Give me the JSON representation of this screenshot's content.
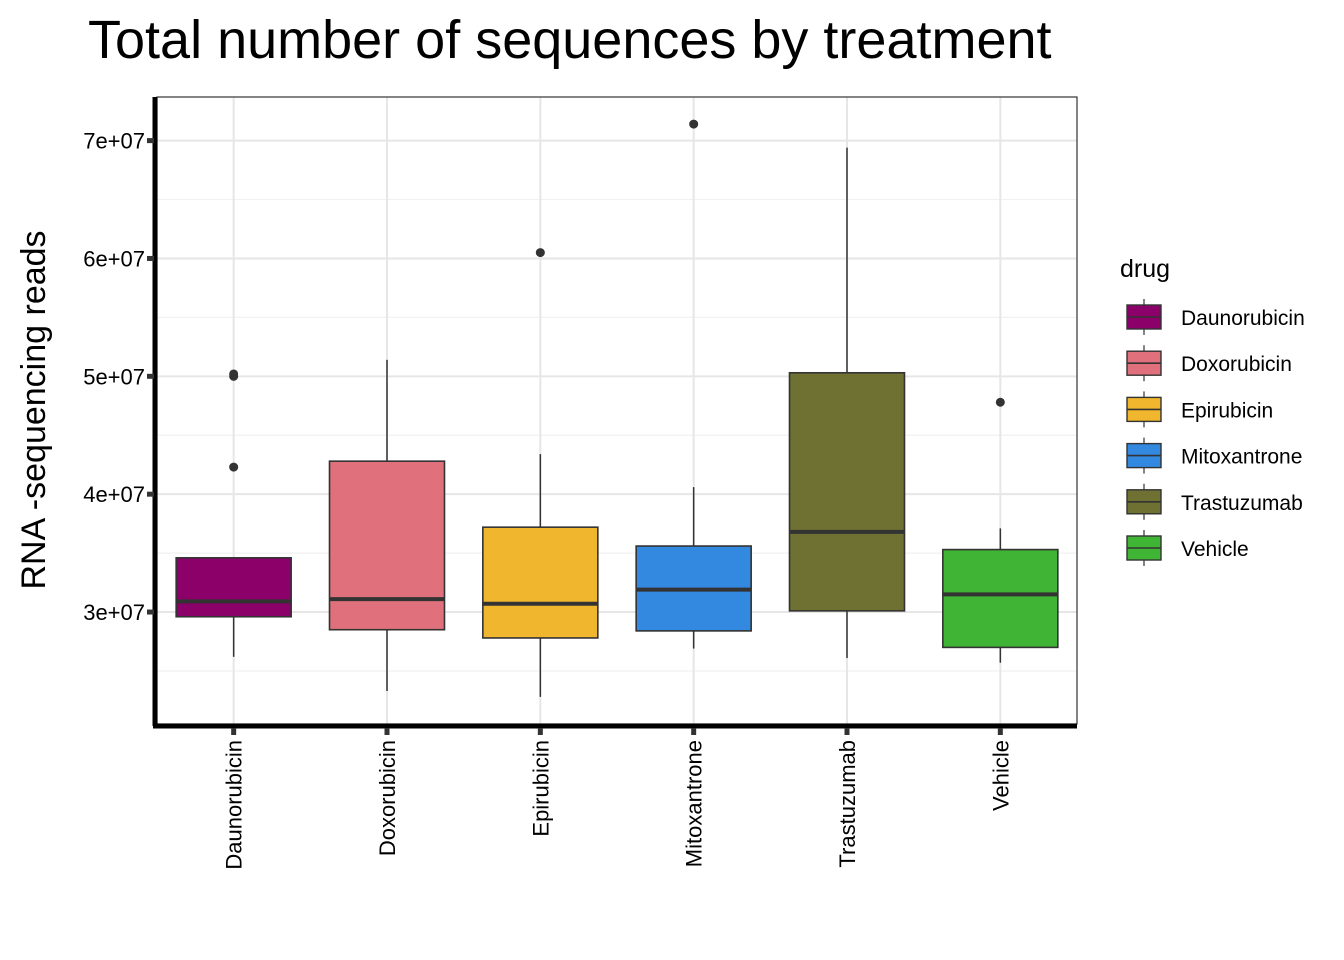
{
  "chart_data": {
    "type": "box",
    "title": "Total number of sequences by treatment",
    "xlabel": "",
    "ylabel": "RNA -sequencing reads",
    "categories": [
      "Daunorubicin",
      "Doxorubicin",
      "Epirubicin",
      "Mitoxantrone",
      "Trastuzumab",
      "Vehicle"
    ],
    "y_ticks": [
      30000000,
      40000000,
      50000000,
      60000000,
      70000000
    ],
    "y_tick_labels": [
      "3e+07",
      "4e+07",
      "5e+07",
      "6e+07",
      "7e+07"
    ],
    "ylim": [
      20500000,
      73700000
    ],
    "grid": true,
    "legend": {
      "title": "drug",
      "placement": "right",
      "entries": [
        "Daunorubicin",
        "Doxorubicin",
        "Epirubicin",
        "Mitoxantrone",
        "Trastuzumab",
        "Vehicle"
      ]
    },
    "colors": {
      "Daunorubicin": "#8B0069",
      "Doxorubicin": "#E0717C",
      "Epirubicin": "#F0B62D",
      "Mitoxantrone": "#3388E0",
      "Trastuzumab": "#6F7133",
      "Vehicle": "#40B535"
    },
    "boxes": [
      {
        "category": "Daunorubicin",
        "whisker_low": 26200000,
        "q1": 29600000,
        "median": 30900000,
        "q3": 34600000,
        "whisker_high": 34600000,
        "outliers": [
          50000000,
          50200000,
          42300000
        ]
      },
      {
        "category": "Doxorubicin",
        "whisker_low": 23300000,
        "q1": 28500000,
        "median": 31100000,
        "q3": 42800000,
        "whisker_high": 51400000,
        "outliers": []
      },
      {
        "category": "Epirubicin",
        "whisker_low": 22800000,
        "q1": 27800000,
        "median": 30700000,
        "q3": 37200000,
        "whisker_high": 43400000,
        "outliers": [
          60500000
        ]
      },
      {
        "category": "Mitoxantrone",
        "whisker_low": 26900000,
        "q1": 28400000,
        "median": 31900000,
        "q3": 35600000,
        "whisker_high": 40600000,
        "outliers": [
          71400000
        ]
      },
      {
        "category": "Trastuzumab",
        "whisker_low": 26100000,
        "q1": 30100000,
        "median": 36800000,
        "q3": 50300000,
        "whisker_high": 69400000,
        "outliers": []
      },
      {
        "category": "Vehicle",
        "whisker_low": 25700000,
        "q1": 27000000,
        "median": 31500000,
        "q3": 35300000,
        "whisker_high": 37100000,
        "outliers": [
          47800000
        ]
      }
    ]
  }
}
